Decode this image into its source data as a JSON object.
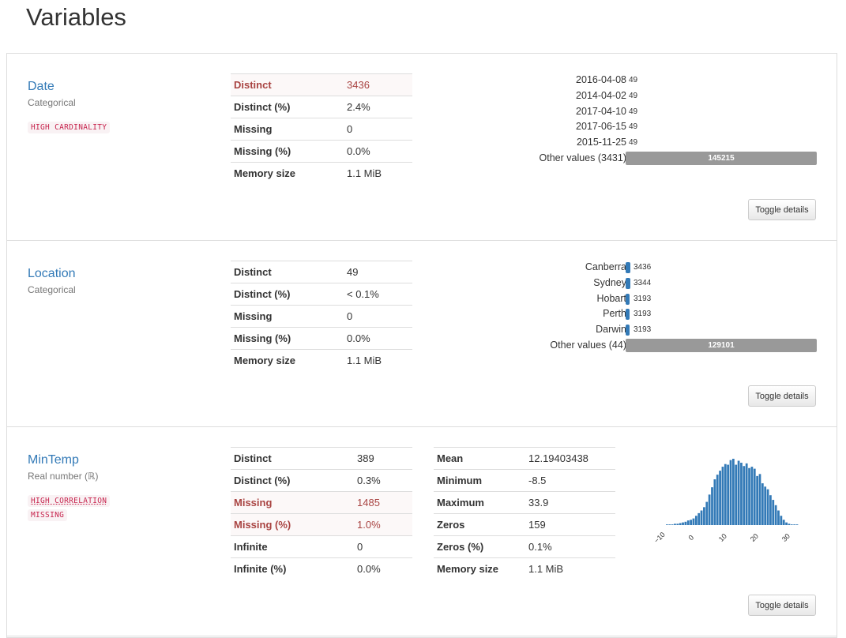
{
  "page": {
    "title": "Variables"
  },
  "toggle_label": "Toggle details",
  "variables": [
    {
      "name": "Date",
      "type": "Categorical",
      "badges": [
        "HIGH CARDINALITY"
      ],
      "stats": [
        {
          "label": "Distinct",
          "value": "3436",
          "alert": true
        },
        {
          "label": "Distinct (%)",
          "value": "2.4%",
          "alert": false
        },
        {
          "label": "Missing",
          "value": "0",
          "alert": false
        },
        {
          "label": "Missing (%)",
          "value": "0.0%",
          "alert": false
        },
        {
          "label": "Memory size",
          "value": "1.1 MiB",
          "alert": false
        }
      ],
      "frequencies": [
        {
          "label": "2016-04-08",
          "count": "49"
        },
        {
          "label": "2014-04-02",
          "count": "49"
        },
        {
          "label": "2017-04-10",
          "count": "49"
        },
        {
          "label": "2017-06-15",
          "count": "49"
        },
        {
          "label": "2015-11-25",
          "count": "49"
        }
      ],
      "other": {
        "label": "Other values (3431)",
        "count": "145215"
      }
    },
    {
      "name": "Location",
      "type": "Categorical",
      "badges": [],
      "stats": [
        {
          "label": "Distinct",
          "value": "49",
          "alert": false
        },
        {
          "label": "Distinct (%)",
          "value": "< 0.1%",
          "alert": false
        },
        {
          "label": "Missing",
          "value": "0",
          "alert": false
        },
        {
          "label": "Missing (%)",
          "value": "0.0%",
          "alert": false
        },
        {
          "label": "Memory size",
          "value": "1.1 MiB",
          "alert": false
        }
      ],
      "frequencies": [
        {
          "label": "Canberra",
          "count": "3436"
        },
        {
          "label": "Sydney",
          "count": "3344"
        },
        {
          "label": "Hobart",
          "count": "3193"
        },
        {
          "label": "Perth",
          "count": "3193"
        },
        {
          "label": "Darwin",
          "count": "3193"
        }
      ],
      "other": {
        "label": "Other values (44)",
        "count": "129101"
      }
    },
    {
      "name": "MinTemp",
      "type": "Real number (ℝ)",
      "badges": [
        "HIGH CORRELATION",
        "MISSING"
      ],
      "stats": [
        {
          "label": "Distinct",
          "value": "389",
          "alert": false
        },
        {
          "label": "Distinct (%)",
          "value": "0.3%",
          "alert": false
        },
        {
          "label": "Missing",
          "value": "1485",
          "alert": true
        },
        {
          "label": "Missing (%)",
          "value": "1.0%",
          "alert": true
        },
        {
          "label": "Infinite",
          "value": "0",
          "alert": false
        },
        {
          "label": "Infinite (%)",
          "value": "0.0%",
          "alert": false
        }
      ],
      "stats2": [
        {
          "label": "Mean",
          "value": "12.19403438"
        },
        {
          "label": "Minimum",
          "value": "-8.5"
        },
        {
          "label": "Maximum",
          "value": "33.9"
        },
        {
          "label": "Zeros",
          "value": "159"
        },
        {
          "label": "Zeros (%)",
          "value": "0.1%"
        },
        {
          "label": "Memory size",
          "value": "1.1 MiB"
        }
      ]
    }
  ],
  "chart_data": {
    "type": "bar",
    "title": "",
    "xlabel": "",
    "ylabel": "",
    "x_ticks": [
      "−10",
      "0",
      "10",
      "20",
      "30"
    ],
    "x_range": [
      -12,
      33
    ],
    "bin_start": -8.5,
    "bin_width": 0.84,
    "values": [
      1,
      1,
      1,
      2,
      2,
      3,
      4,
      5,
      7,
      8,
      10,
      14,
      18,
      22,
      27,
      35,
      46,
      57,
      69,
      76,
      82,
      88,
      92,
      91,
      98,
      100,
      91,
      97,
      94,
      89,
      93,
      86,
      88,
      85,
      74,
      77,
      63,
      58,
      54,
      45,
      38,
      30,
      22,
      14,
      8,
      4,
      2,
      1,
      1,
      1
    ],
    "color": "#337ab7",
    "grid": false,
    "legend": "none"
  }
}
